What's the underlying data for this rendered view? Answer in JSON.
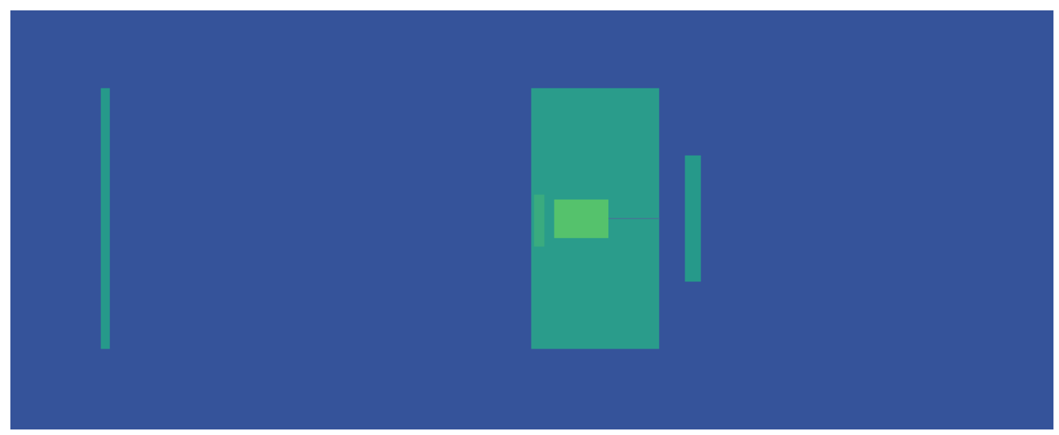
{
  "chart_data": {
    "type": "spectrogram",
    "tick_labels": false,
    "xlim": [
      0,
      1500
    ],
    "ylim": [
      0,
      598
    ],
    "xticks": [],
    "yticks": [],
    "signals": [
      {
        "x": [
          130,
          143
        ],
        "y": [
          111,
          483
        ],
        "color": "#26998a"
      },
      {
        "x": [
          749,
          933
        ],
        "y": [
          111,
          483
        ],
        "color": "#2a9c8b"
      },
      {
        "x": [
          753,
          768
        ],
        "y": [
          263,
          337
        ],
        "color": "#3aab7f"
      },
      {
        "x": [
          782,
          860
        ],
        "y": [
          270,
          325
        ],
        "color": "#55c26c"
      },
      {
        "x": [
          860,
          933
        ],
        "y": [
          296,
          298
        ],
        "color": "#3f7f92"
      },
      {
        "x": [
          970,
          993
        ],
        "y": [
          207,
          387
        ],
        "color": "#26998a"
      }
    ]
  }
}
